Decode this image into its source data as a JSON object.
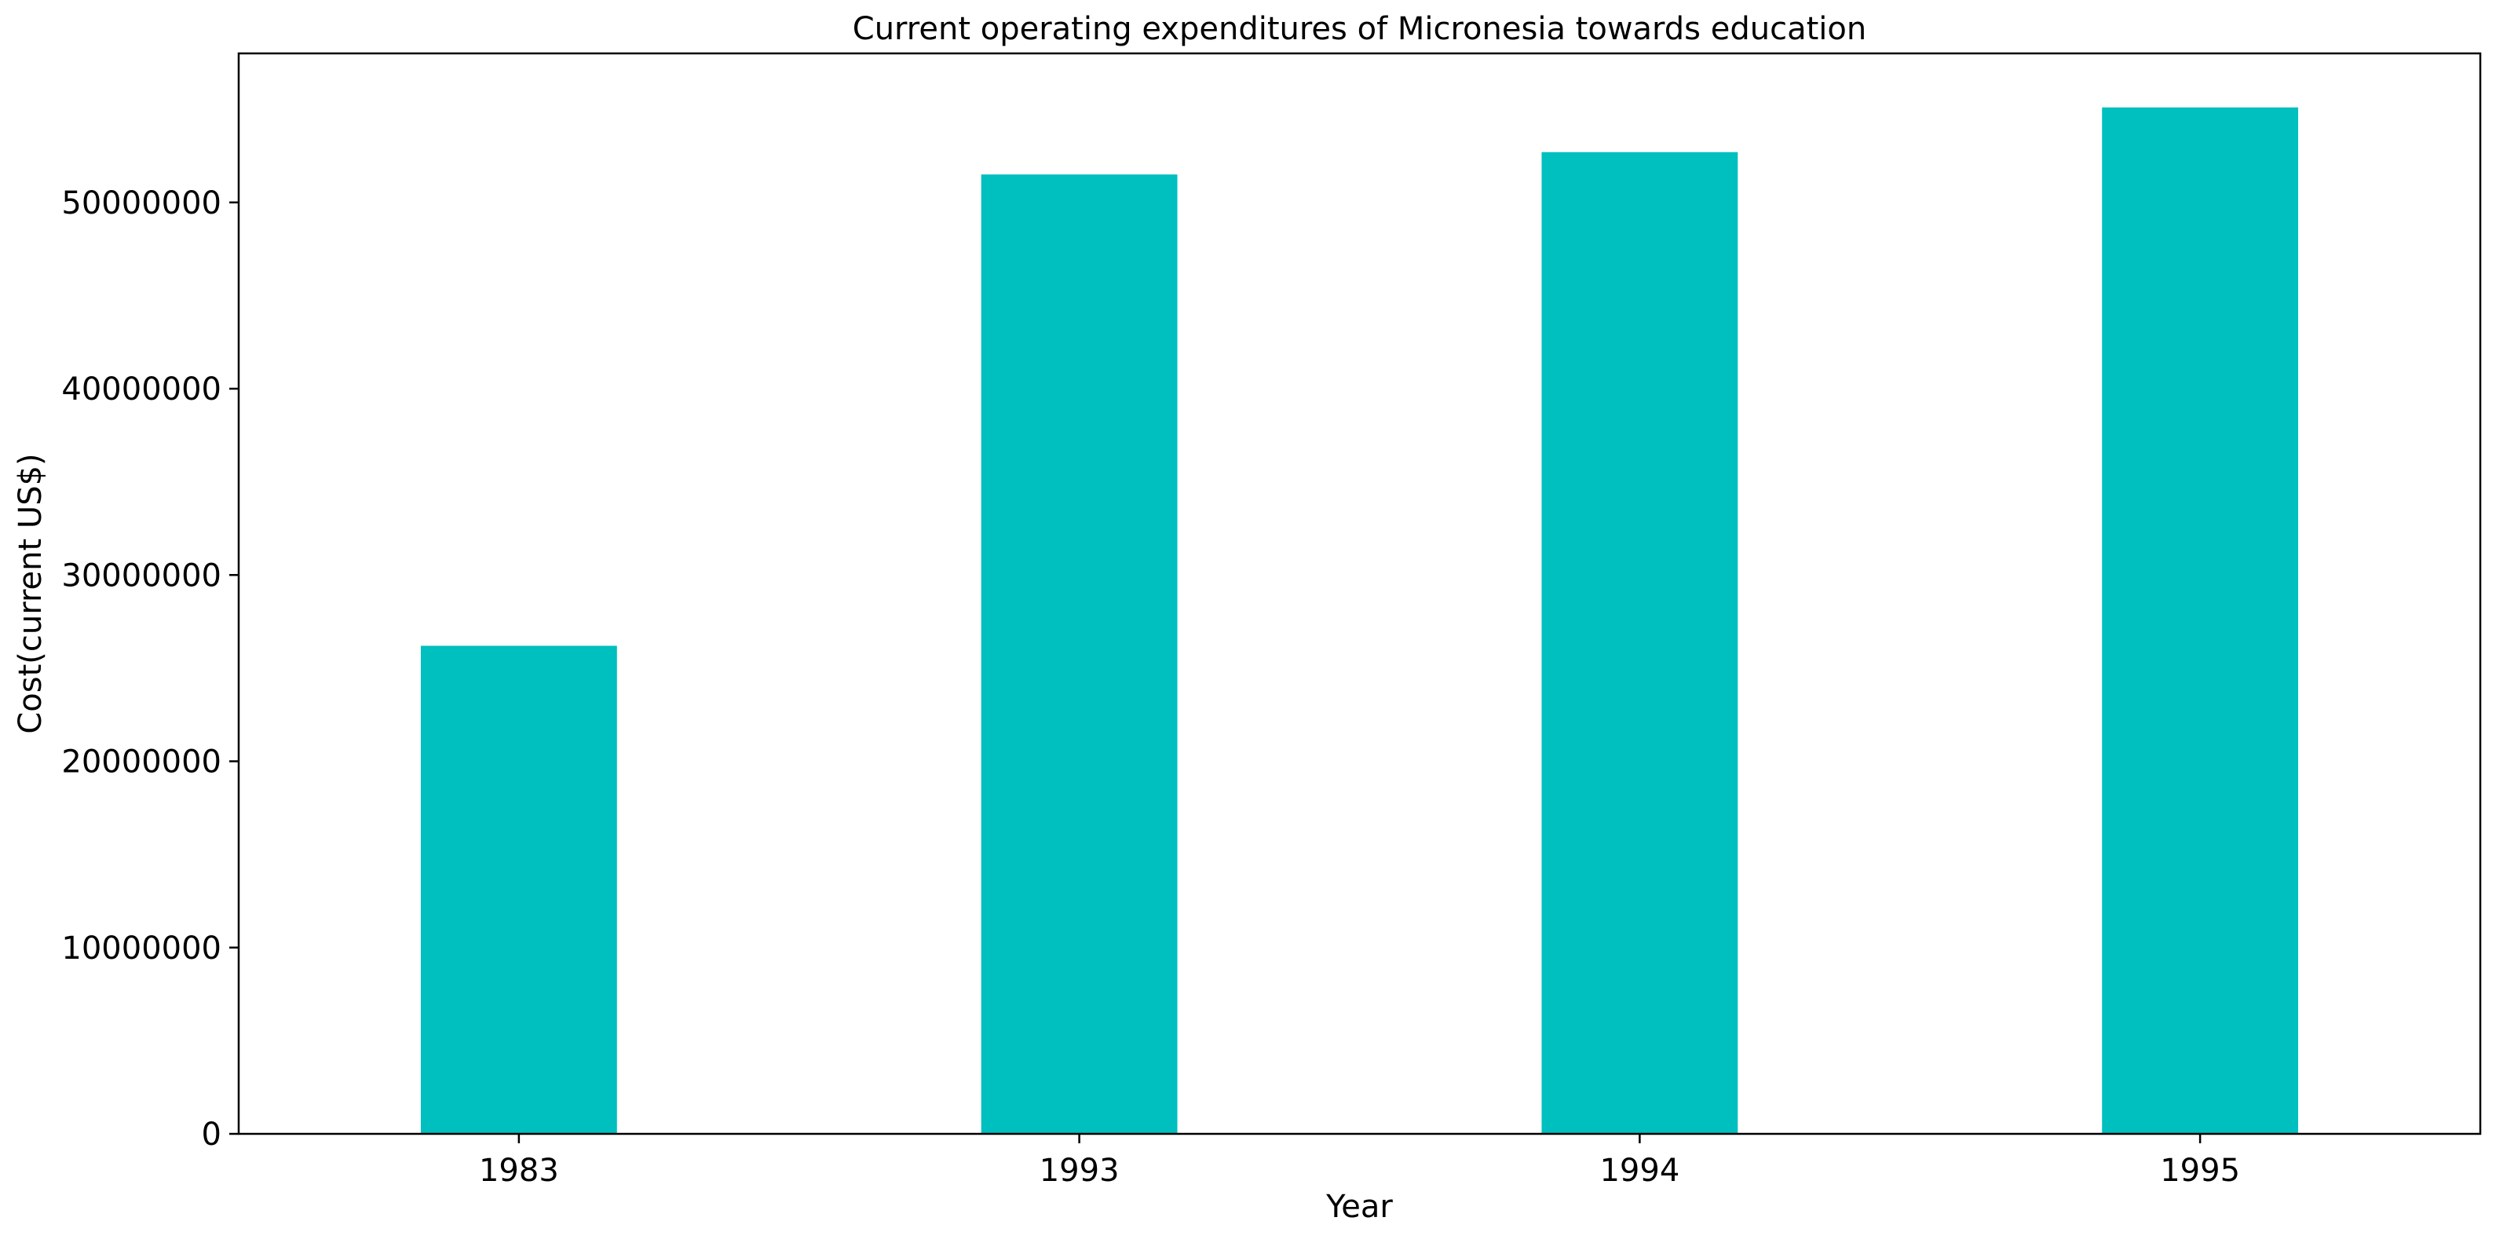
{
  "chart_data": {
    "type": "bar",
    "title": "Current operating expenditures of Micronesia towards education",
    "xlabel": "Year",
    "ylabel": "Cost(current US$)",
    "categories": [
      "1983",
      "1993",
      "1994",
      "1995"
    ],
    "values": [
      26200000,
      51500000,
      52700000,
      55100000
    ],
    "ylim": [
      0,
      58000000
    ],
    "yticks": [
      0,
      10000000,
      20000000,
      30000000,
      40000000,
      50000000
    ],
    "ytick_labels": [
      "0",
      "10000000",
      "20000000",
      "30000000",
      "40000000",
      "50000000"
    ],
    "bar_color": "#00bfbf",
    "grid": false,
    "legend": "none"
  }
}
